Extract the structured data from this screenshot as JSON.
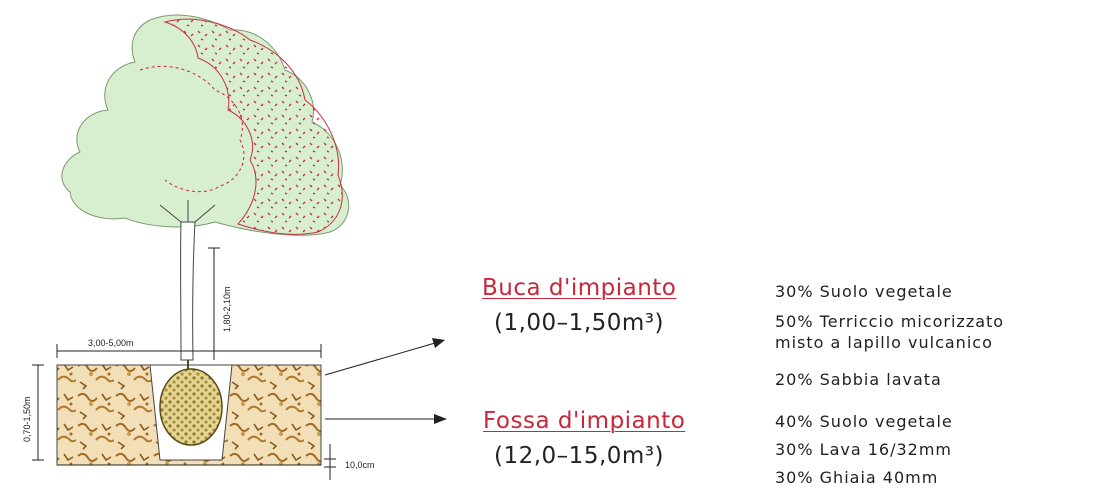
{
  "dimensions": {
    "width_label": "3,00-5,00m",
    "trunk_height_label": "1,80-2,10m",
    "depth_label": "0,70-1,50m",
    "base_label": "10,0cm"
  },
  "buca": {
    "title": "Buca d'impianto",
    "volume": "(1,00–1,50m³)",
    "composition": [
      "30% Suolo vegetale",
      "50% Terriccio micorizzato",
      "misto a lapillo vulcanico",
      "20% Sabbia lavata"
    ]
  },
  "fossa": {
    "title": "Fossa d'impianto",
    "volume": "(12,0–15,0m³)",
    "composition": [
      "40% Suolo vegetale",
      "30% Lava 16/32mm",
      "30% Ghiaia 40mm"
    ]
  },
  "colors": {
    "foliage": "#d8efcf",
    "foliage_dots": "#c8263a",
    "soil": "#d8b070",
    "title_red": "#c8263a"
  }
}
